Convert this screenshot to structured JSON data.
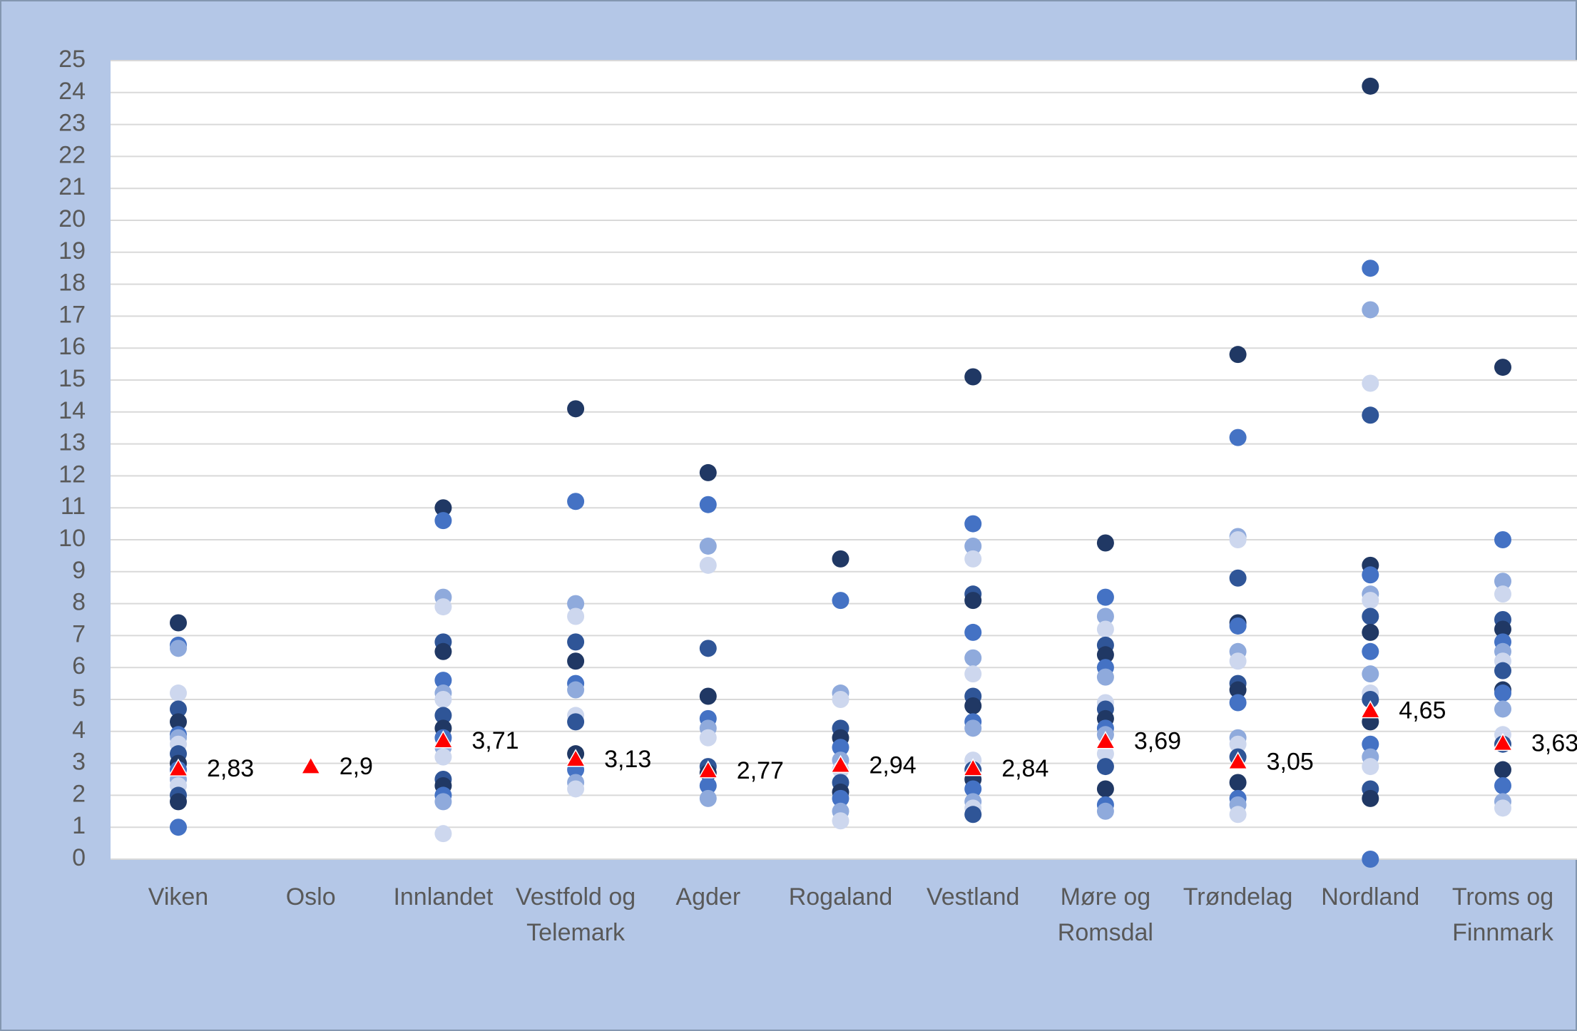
{
  "chart_data": {
    "type": "strip",
    "categories": [
      "Viken",
      "Oslo",
      "Innlandet",
      "Vestfold og Telemark",
      "Agder",
      "Rogaland",
      "Vestland",
      "Møre og Romsdal",
      "Trøndelag",
      "Nordland",
      "Troms og Finnmark"
    ],
    "points": [
      [
        7.4,
        6.7,
        6.6,
        5.2,
        4.7,
        4.3,
        3.9,
        3.8,
        3.6,
        3.3,
        3.0,
        2.8,
        2.5,
        2.3,
        2.0,
        1.8,
        1.0
      ],
      [],
      [
        11.0,
        10.6,
        8.2,
        7.9,
        6.8,
        6.5,
        5.6,
        5.2,
        5.0,
        4.5,
        4.1,
        3.8,
        3.5,
        3.2,
        2.5,
        2.3,
        2.0,
        1.8,
        0.8
      ],
      [
        14.1,
        11.2,
        8.0,
        7.6,
        6.8,
        6.2,
        5.5,
        5.3,
        4.5,
        4.3,
        3.3,
        2.8,
        2.4,
        2.2
      ],
      [
        12.1,
        11.1,
        9.8,
        9.2,
        6.6,
        5.1,
        4.4,
        4.1,
        3.8,
        2.9,
        2.7,
        2.3,
        1.9
      ],
      [
        9.4,
        8.1,
        5.2,
        5.0,
        4.1,
        3.8,
        3.5,
        3.1,
        2.8,
        2.4,
        2.1,
        1.9,
        1.5,
        1.2
      ],
      [
        15.1,
        10.5,
        9.8,
        9.4,
        8.3,
        8.1,
        7.1,
        6.3,
        5.8,
        5.1,
        4.8,
        4.3,
        4.1,
        3.1,
        2.8,
        2.5,
        2.2,
        1.8,
        1.6,
        1.4
      ],
      [
        9.9,
        8.2,
        7.6,
        7.2,
        6.7,
        6.4,
        6.0,
        5.7,
        4.9,
        4.7,
        4.4,
        4.1,
        3.9,
        3.3,
        2.9,
        2.2,
        1.7,
        1.5
      ],
      [
        15.8,
        13.2,
        10.1,
        10.0,
        8.8,
        7.4,
        7.3,
        6.5,
        6.2,
        5.5,
        5.3,
        4.9,
        3.8,
        3.6,
        3.2,
        2.4,
        1.9,
        1.7,
        1.4
      ],
      [
        24.2,
        18.5,
        17.2,
        14.9,
        13.9,
        9.2,
        8.9,
        8.3,
        8.1,
        7.6,
        7.1,
        6.5,
        5.8,
        5.2,
        5.0,
        4.3,
        3.6,
        3.2,
        2.9,
        2.2,
        1.9,
        0.0
      ],
      [
        15.4,
        10.0,
        8.7,
        8.3,
        7.5,
        7.2,
        6.8,
        6.5,
        6.2,
        5.9,
        5.3,
        5.2,
        4.7,
        3.9,
        3.6,
        2.8,
        2.3,
        1.8,
        1.6
      ]
    ],
    "point_colors": [
      "#203864",
      "#4472c4",
      "#8faadc",
      "#cdd7ee",
      "#2f5597"
    ],
    "means": {
      "values": [
        2.83,
        2.9,
        3.71,
        3.13,
        2.77,
        2.94,
        2.84,
        3.69,
        3.05,
        4.65,
        3.63
      ],
      "value_labels": [
        "2,83",
        "2,9",
        "3,71",
        "3,13",
        "2,77",
        "2,94",
        "2,84",
        "3,69",
        "3,05",
        "4,65",
        "3,63"
      ],
      "color": "#ff0000"
    },
    "ylim": [
      0,
      25
    ],
    "yticks": [
      0,
      1,
      2,
      3,
      4,
      5,
      6,
      7,
      8,
      9,
      10,
      11,
      12,
      13,
      14,
      15,
      16,
      17,
      18,
      19,
      20,
      21,
      22,
      23,
      24,
      25
    ],
    "grid": true
  }
}
